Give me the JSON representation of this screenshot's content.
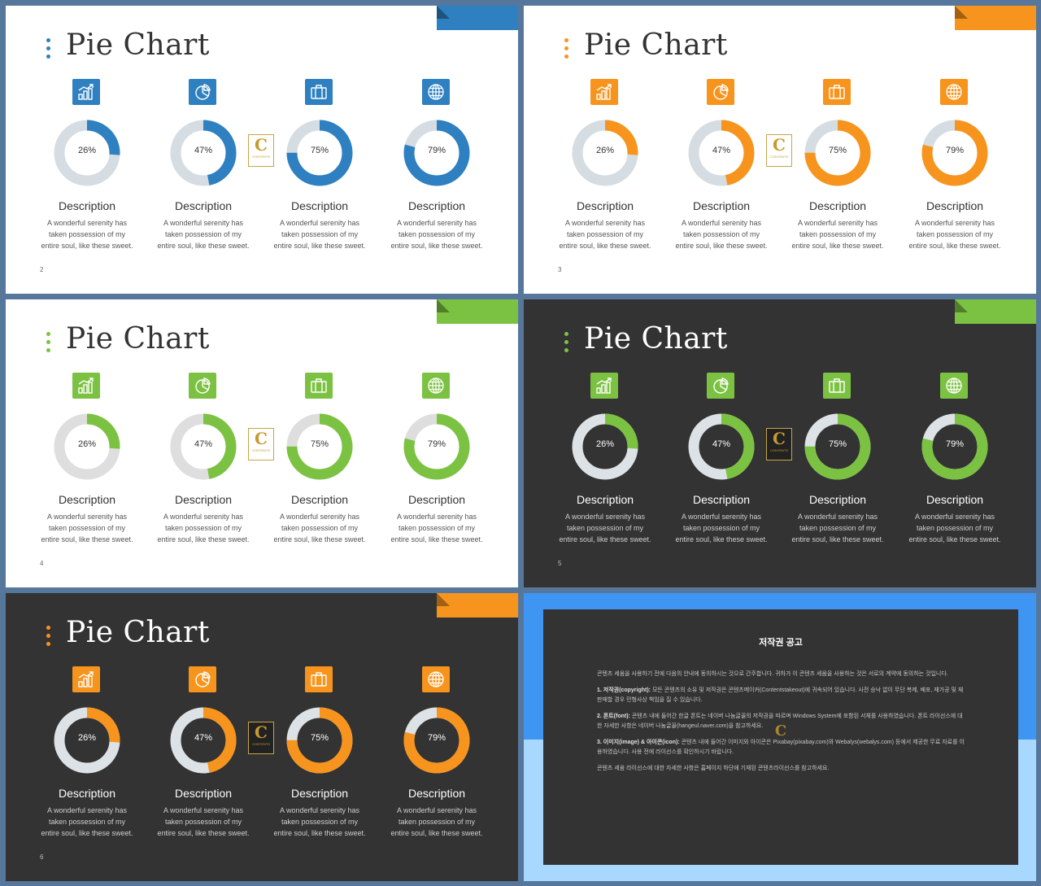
{
  "slide_title": "Pie Chart",
  "description_title": "Description",
  "description_text": [
    "A wonderful  serenity has",
    "taken possession of my",
    "entire soul, like these sweet."
  ],
  "logo": {
    "letter": "C",
    "caption": "CONTENTS"
  },
  "items": [
    {
      "value": 26,
      "label": "26%",
      "icon": "chart-growth-icon"
    },
    {
      "value": 47,
      "label": "47%",
      "icon": "pie-chart-icon"
    },
    {
      "value": 75,
      "label": "75%",
      "icon": "briefcase-icon"
    },
    {
      "value": 79,
      "label": "79%",
      "icon": "globe-icon"
    }
  ],
  "slides": [
    {
      "page": "2",
      "theme": "light",
      "accent": "#2e80c0",
      "track": "#d5dde3"
    },
    {
      "page": "3",
      "theme": "light",
      "accent": "#f7941d",
      "track": "#d5dde3"
    },
    {
      "page": "4",
      "theme": "light",
      "accent": "#7cc242",
      "track": "#dedede"
    },
    {
      "page": "5",
      "theme": "dark",
      "accent": "#7cc242",
      "track": "#dde2e6"
    },
    {
      "page": "6",
      "theme": "dark",
      "accent": "#f7941d",
      "track": "#dde2e6"
    }
  ],
  "copyright": {
    "title": "저작권 공고",
    "intro": "콘텐츠 세움을 사용하기 전에 다음의 안내에 동의하시는 것으로 간주합니다. 귀하가 이 콘텐츠 세움을 사용하는 것은 서로의 계약에 동의하는 것입니다.",
    "p1_head": "1. 저작권(copyright):",
    "p1": "모든 콘텐츠의 소유 및 저작권은 콘텐츠메이커(Contentstakeout)에 귀속되어 있습니다. 사전 승낙 없이 무단 복제, 배포, 재가공 및 재판매할 경우 민형사상 책임을 질 수 있습니다.",
    "p2_head": "2. 폰트(font):",
    "p2": "콘텐츠 내에 들어간 한글 폰트는 네이버 나눔글꼴의 저작권을 따르며 Windows System에 포함된 서체를 사용하였습니다. 폰트 라이선스에 대한 자세한 사항은 네이버 나눔글꼴(hangeul.naver.com)을 참고하세요.",
    "p3_head": "3. 이미지(image) & 아이콘(icon):",
    "p3": "콘텐츠 내에 들어간 이미지와 아이콘은 Pixabay(pixabay.com)와 Webalys(webalys.com) 등에서 제공한 무료 자료를 이용하였습니다. 사용 전에 라이선스를 확인하시기 바랍니다.",
    "outro": "콘텐츠 세움 라이선스에 대한 자세한 사항은 홈페이지 하단에 기재된 콘텐츠라이선스를 참고하세요."
  }
}
